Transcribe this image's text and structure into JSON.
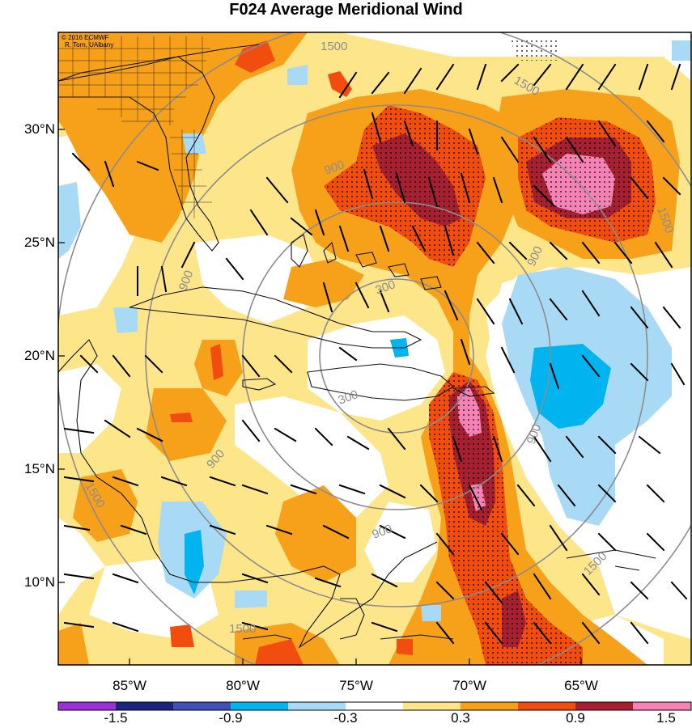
{
  "title": "F024 Average Meridional Wind",
  "credit": {
    "line1": "© 2016 ECMWF",
    "line2": "R. Torn, UAlbany"
  },
  "lat_labels": [
    "30°N",
    "25°N",
    "20°N",
    "15°N",
    "10°N"
  ],
  "lon_labels": [
    "85°W",
    "80°W",
    "75°W",
    "70°W",
    "65°W"
  ],
  "colorbar": {
    "colors": [
      "#9b30d6",
      "#1a237e",
      "#3f51b5",
      "#00b4f0",
      "#a8daf5",
      "#ffffff",
      "#fde58a",
      "#f7a11a",
      "#f04d0f",
      "#a52030",
      "#f582b4"
    ],
    "labels": [
      "-1.5",
      "-0.9",
      "-0.3",
      "0.3",
      "0.9",
      "1.5"
    ]
  },
  "contour_labels": [
    "1500",
    "1500",
    "1500",
    "900",
    "900",
    "900",
    "900",
    "900",
    "300",
    "300",
    "1500",
    "1500",
    "900",
    "1500"
  ],
  "colors": {
    "orange": "#f7a11a",
    "yellow": "#fde58a",
    "red": "#f04d0f",
    "darkred": "#a52030",
    "pink": "#f582b4",
    "lightblue": "#a8daf5",
    "blue": "#00b4f0"
  }
}
